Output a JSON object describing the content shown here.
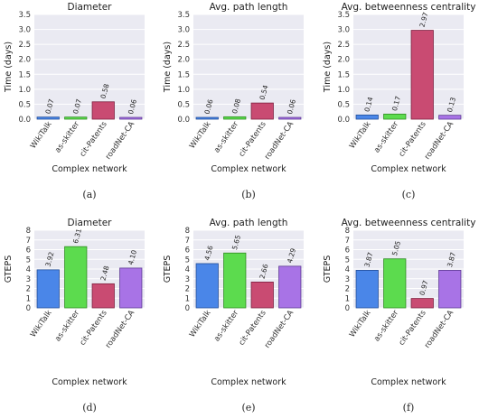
{
  "chart_data": [
    {
      "type": "bar",
      "panel_label": "(a)",
      "title": "Diameter",
      "xlabel": "Complex network",
      "ylabel": "Time (days)",
      "categories": [
        "WikiTalk",
        "as-skitter",
        "cit-Patents",
        "roadNet-CA"
      ],
      "values": [
        0.07,
        0.07,
        0.58,
        0.06
      ],
      "value_labels": [
        "0.07",
        "0.07",
        "0.58",
        "0.06"
      ],
      "ylim": [
        0,
        3.5
      ],
      "yticks": [
        "0.0",
        "0.5",
        "1.0",
        "1.5",
        "2.0",
        "2.5",
        "3.0",
        "3.5"
      ],
      "grid": true
    },
    {
      "type": "bar",
      "panel_label": "(b)",
      "title": "Avg. path length",
      "xlabel": "Complex network",
      "ylabel": "Time (days)",
      "categories": [
        "WikiTalk",
        "as-skitter",
        "cit-Patents",
        "roadNet-CA"
      ],
      "values": [
        0.06,
        0.08,
        0.54,
        0.06
      ],
      "value_labels": [
        "0.06",
        "0.08",
        "0.54",
        "0.06"
      ],
      "ylim": [
        0,
        3.5
      ],
      "yticks": [
        "0.0",
        "0.5",
        "1.0",
        "1.5",
        "2.0",
        "2.5",
        "3.0",
        "3.5"
      ],
      "grid": true
    },
    {
      "type": "bar",
      "panel_label": "(c)",
      "title": "Avg. betweenness centrality",
      "xlabel": "Complex network",
      "ylabel": "Time (days)",
      "categories": [
        "WikiTalk",
        "as-skitter",
        "cit-Patents",
        "roadNet-CA"
      ],
      "values": [
        0.14,
        0.17,
        2.97,
        0.13
      ],
      "value_labels": [
        "0.14",
        "0.17",
        "2.97",
        "0.13"
      ],
      "ylim": [
        0,
        3.5
      ],
      "yticks": [
        "0.0",
        "0.5",
        "1.0",
        "1.5",
        "2.0",
        "2.5",
        "3.0",
        "3.5"
      ],
      "grid": true
    },
    {
      "type": "bar",
      "panel_label": "(d)",
      "title": "Diameter",
      "xlabel": "Complex network",
      "ylabel": "GTEPS",
      "categories": [
        "WikiTalk",
        "as-skitter",
        "cit-Patents",
        "roadNet-CA"
      ],
      "values": [
        3.92,
        6.31,
        2.48,
        4.1
      ],
      "value_labels": [
        "3.92",
        "6.31",
        "2.48",
        "4.10"
      ],
      "ylim": [
        0,
        8
      ],
      "yticks": [
        "0",
        "1",
        "2",
        "3",
        "4",
        "5",
        "6",
        "7",
        "8"
      ],
      "grid": true
    },
    {
      "type": "bar",
      "panel_label": "(e)",
      "title": "Avg. path length",
      "xlabel": "Complex network",
      "ylabel": "GTEPS",
      "categories": [
        "WikiTalk",
        "as-skitter",
        "cit-Patents",
        "roadNet-CA"
      ],
      "values": [
        4.56,
        5.65,
        2.66,
        4.29
      ],
      "value_labels": [
        "4.56",
        "5.65",
        "2.66",
        "4.29"
      ],
      "ylim": [
        0,
        8
      ],
      "yticks": [
        "0",
        "1",
        "2",
        "3",
        "4",
        "5",
        "6",
        "7",
        "8"
      ],
      "grid": true
    },
    {
      "type": "bar",
      "panel_label": "(f)",
      "title": "Avg. betweenness centrality",
      "xlabel": "Complex network",
      "ylabel": "GTEPS",
      "categories": [
        "WikiTalk",
        "as-skitter",
        "cit-Patents",
        "roadNet-CA"
      ],
      "values": [
        3.87,
        5.05,
        0.97,
        3.87
      ],
      "value_labels": [
        "3.87",
        "5.05",
        "0.97",
        "3.87"
      ],
      "ylim": [
        0,
        8
      ],
      "yticks": [
        "0",
        "1",
        "2",
        "3",
        "4",
        "5",
        "6",
        "7",
        "8"
      ],
      "grid": true
    }
  ],
  "colors": {
    "bars": [
      "#4a86e8",
      "#5cdb4e",
      "#c94b72",
      "#a873e6"
    ],
    "edges": [
      "#224e9a",
      "#2e8c22",
      "#7e2040",
      "#5e3a94"
    ],
    "plot_background": "#eaeaf2",
    "grid": "#ffffff"
  }
}
